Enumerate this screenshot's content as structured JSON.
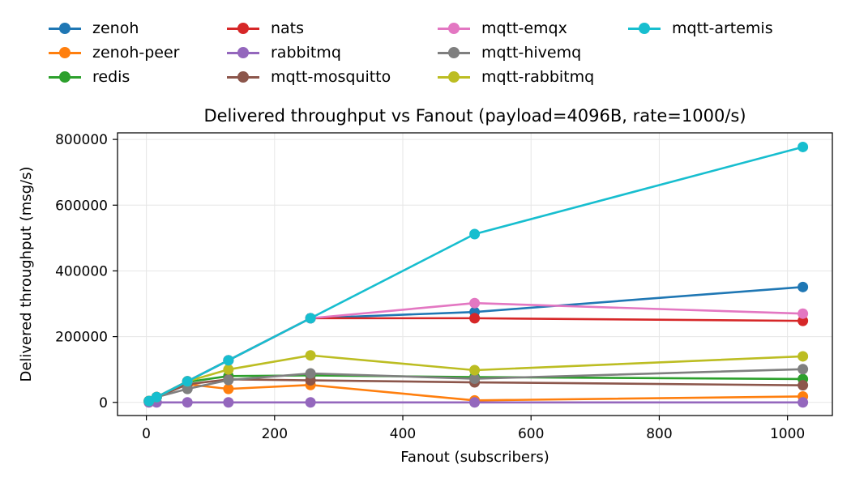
{
  "chart_data": {
    "type": "line",
    "title": "Delivered throughput vs Fanout (payload=4096B, rate=1000/s)",
    "xlabel": "Fanout (subscribers)",
    "ylabel": "Delivered throughput (msg/s)",
    "xlim": [
      -45,
      1070
    ],
    "ylim": [
      -40000,
      820000
    ],
    "xticks": [
      0,
      200,
      400,
      600,
      800,
      1000
    ],
    "yticks": [
      0,
      200000,
      400000,
      600000,
      800000
    ],
    "grid": true,
    "legend_position": "top",
    "x": [
      4,
      16,
      64,
      128,
      256,
      512,
      1024
    ],
    "series": [
      {
        "name": "zenoh",
        "color": "#1f77b4",
        "values": [
          4000,
          16000,
          64000,
          128000,
          256000,
          275000,
          351000
        ]
      },
      {
        "name": "zenoh-peer",
        "color": "#ff7f0e",
        "values": [
          4000,
          16000,
          55000,
          41000,
          53000,
          6000,
          18000
        ]
      },
      {
        "name": "redis",
        "color": "#2ca02c",
        "values": [
          4000,
          16000,
          62000,
          80000,
          82000,
          77000,
          71000
        ]
      },
      {
        "name": "nats",
        "color": "#d62728",
        "values": [
          4000,
          16000,
          64000,
          128000,
          256000,
          256000,
          248000
        ]
      },
      {
        "name": "rabbitmq",
        "color": "#9467bd",
        "values": [
          0,
          0,
          0,
          0,
          0,
          0,
          0
        ]
      },
      {
        "name": "mqtt-mosquitto",
        "color": "#8c564b",
        "values": [
          4000,
          16000,
          55000,
          70000,
          67000,
          61000,
          52000
        ]
      },
      {
        "name": "mqtt-emqx",
        "color": "#e377c2",
        "values": [
          4000,
          16000,
          64000,
          128000,
          256000,
          302000,
          270000
        ]
      },
      {
        "name": "mqtt-hivemq",
        "color": "#7f7f7f",
        "values": [
          4000,
          16000,
          41000,
          68000,
          88000,
          72000,
          101000
        ]
      },
      {
        "name": "mqtt-rabbitmq",
        "color": "#bcbd22",
        "values": [
          4000,
          16000,
          64000,
          100000,
          143000,
          98000,
          140000
        ]
      },
      {
        "name": "mqtt-artemis",
        "color": "#17becf",
        "values": [
          4000,
          16000,
          64000,
          128000,
          256000,
          512000,
          777000
        ]
      }
    ]
  }
}
